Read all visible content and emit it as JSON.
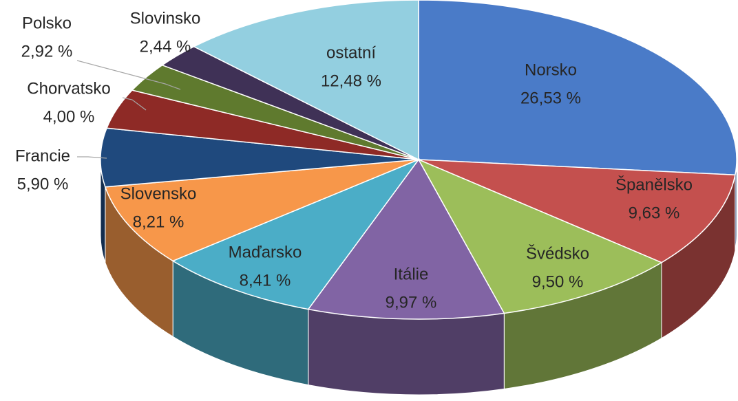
{
  "chart_data": {
    "type": "pie",
    "categories": [
      "Norsko",
      "Španělsko",
      "Švédsko",
      "Itálie",
      "Maďarsko",
      "Slovensko",
      "Francie",
      "Chorvatsko",
      "Polsko",
      "Slovinsko",
      "ostatní"
    ],
    "values": [
      26.53,
      9.63,
      9.5,
      9.97,
      8.41,
      8.21,
      5.9,
      4.0,
      2.92,
      2.44,
      12.48
    ],
    "value_labels": [
      "26,53 %",
      "9,63 %",
      "9,50 %",
      "9,97 %",
      "8,41 %",
      "8,21 %",
      "5,90 %",
      "4,00 %",
      "2,92 %",
      "2,44 %",
      "12,48 %"
    ],
    "colors": [
      "#4a7bc8",
      "#c4504e",
      "#9cbe5a",
      "#8164a4",
      "#4badc7",
      "#f7974a",
      "#1f497d",
      "#8e2a26",
      "#5f7a2e",
      "#3f3156",
      "#93cfe0"
    ]
  }
}
